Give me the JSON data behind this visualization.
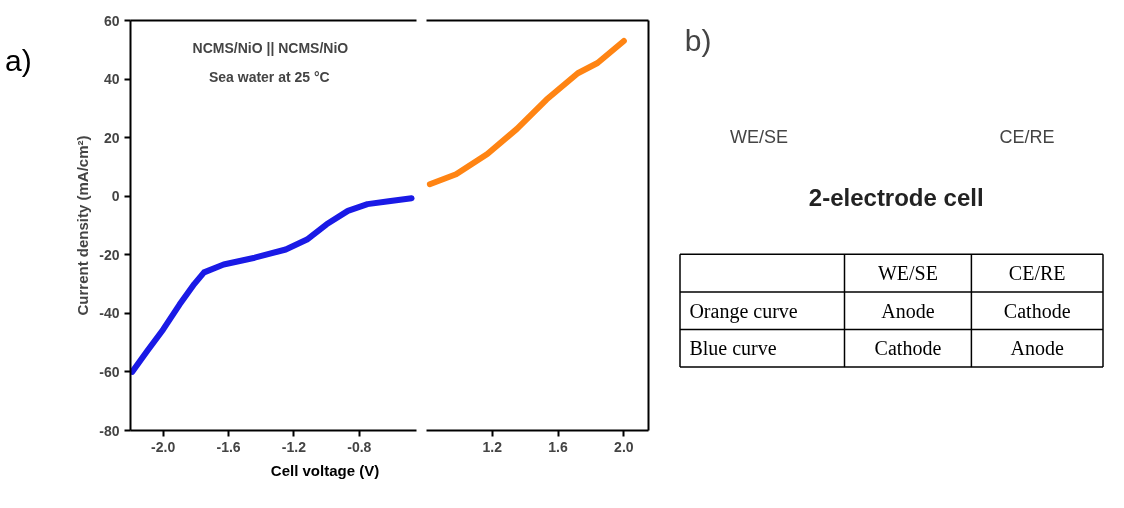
{
  "chart_data": [
    {
      "type": "line",
      "ylabel": "Current density (mA/cm²)",
      "xlabel": "Cell voltage (V)",
      "annotations": [
        "a)",
        "NCMS/NiO || NCMS/NiO",
        "Sea water at 25 °C"
      ],
      "xlim": [
        -2.2,
        -0.45
      ],
      "xticks": [
        {
          "value": -2,
          "label": "-2.0"
        },
        -1.6,
        -1.2,
        -0.8
      ],
      "ylim": [
        -80,
        60
      ],
      "yticks": [
        -80,
        -60,
        -40,
        -20,
        0,
        20,
        40,
        60
      ],
      "grid": false,
      "series": [
        {
          "color": "#1a1ae6",
          "x": [
            -2.19,
            -2.1,
            -2.0,
            -1.9,
            -1.81,
            -1.75,
            -1.63,
            -1.44,
            -1.25,
            -1.12,
            -1.0,
            -0.87,
            -0.75,
            -0.62,
            -0.48
          ],
          "values": [
            -60,
            -53,
            -45.5,
            -37,
            -30,
            -26,
            -23.3,
            -21,
            -18.2,
            -14.8,
            -9.6,
            -5,
            -2.7,
            -1.7,
            -0.7
          ]
        }
      ]
    },
    {
      "type": "line",
      "xlim": [
        0.8,
        2.15
      ],
      "xticks": [
        1.2,
        1.6,
        {
          "value": 2,
          "label": "2.0"
        }
      ],
      "ylim": [
        -80,
        60
      ],
      "tick_labels": "x",
      "grid": false,
      "series": [
        {
          "color": "#ff8413",
          "x": [
            0.82,
            0.98,
            1.17,
            1.35,
            1.53,
            1.72,
            1.84,
            2.0
          ],
          "values": [
            4.1,
            7.5,
            14.4,
            23,
            33,
            42,
            45.5,
            53
          ]
        }
      ]
    },
    {
      "type": "other",
      "annotations": [
        "b)",
        "WE/SE",
        "CE/RE",
        "2-electrode cell",
        "WE/SE",
        "CE/RE",
        "Orange curve",
        "Anode",
        "Cathode",
        "Blue curve",
        "Cathode",
        "Anode"
      ]
    }
  ]
}
